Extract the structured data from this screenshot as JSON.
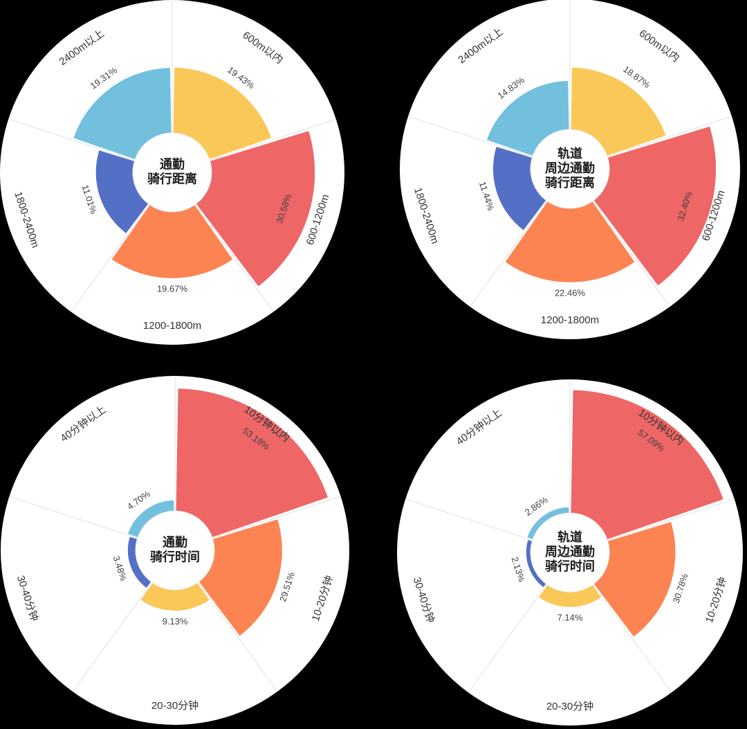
{
  "background_color": "#000000",
  "styles": {
    "category_label_color": "#333333",
    "value_label_color": "#404040",
    "title_color": "#1a1a1a",
    "disc_color": "#ffffff",
    "spoke_color": "#e0e0e0",
    "palette": {
      "yellow": "#fac858",
      "red": "#ee6666",
      "orange": "#fc8452",
      "blue": "#5470c6",
      "lightblue": "#73c0de"
    }
  },
  "chart_data": [
    {
      "type": "pie",
      "variant": "nightingale-rose",
      "title": "通勤骑行距离",
      "title_lines": [
        "通勤",
        "骑行距离"
      ],
      "categories": [
        "600m以内",
        "600-1200m",
        "1200-1800m",
        "1800-2400m",
        "2400m以上"
      ],
      "values": [
        19.43,
        30.58,
        19.67,
        11.01,
        19.31
      ],
      "colors": [
        "#fac858",
        "#ee6666",
        "#fc8452",
        "#5470c6",
        "#73c0de"
      ],
      "unit": "%",
      "legend": false,
      "grid": "radial-spokes"
    },
    {
      "type": "pie",
      "variant": "nightingale-rose",
      "title": "轨道周边通勤骑行距离",
      "title_lines": [
        "轨道",
        "周边通勤",
        "骑行距离"
      ],
      "categories": [
        "600m以内",
        "600-1200m",
        "1200-1800m",
        "1800-2400m",
        "2400m以上"
      ],
      "values": [
        18.87,
        32.4,
        22.46,
        11.44,
        14.83
      ],
      "colors": [
        "#fac858",
        "#ee6666",
        "#fc8452",
        "#5470c6",
        "#73c0de"
      ],
      "unit": "%",
      "legend": false,
      "grid": "radial-spokes"
    },
    {
      "type": "pie",
      "variant": "nightingale-rose",
      "title": "通勤骑行时间",
      "title_lines": [
        "通勤",
        "骑行时间"
      ],
      "categories": [
        "10分钟以内",
        "10-20分钟",
        "20-30分钟",
        "30-40分钟",
        "40分钟以上"
      ],
      "values": [
        53.18,
        29.51,
        9.13,
        3.48,
        4.7
      ],
      "colors": [
        "#ee6666",
        "#fc8452",
        "#fac858",
        "#5470c6",
        "#73c0de"
      ],
      "unit": "%",
      "legend": false,
      "grid": "radial-spokes"
    },
    {
      "type": "pie",
      "variant": "nightingale-rose",
      "title": "轨道周边通勤骑行时间",
      "title_lines": [
        "轨道",
        "周边通勤",
        "骑行时间"
      ],
      "categories": [
        "10分钟以内",
        "10-20分钟",
        "20-30分钟",
        "30-40分钟",
        "40分钟以上"
      ],
      "values": [
        57.09,
        30.78,
        7.14,
        2.13,
        2.86
      ],
      "colors": [
        "#ee6666",
        "#fc8452",
        "#fac858",
        "#5470c6",
        "#73c0de"
      ],
      "unit": "%",
      "legend": false,
      "grid": "radial-spokes"
    }
  ]
}
